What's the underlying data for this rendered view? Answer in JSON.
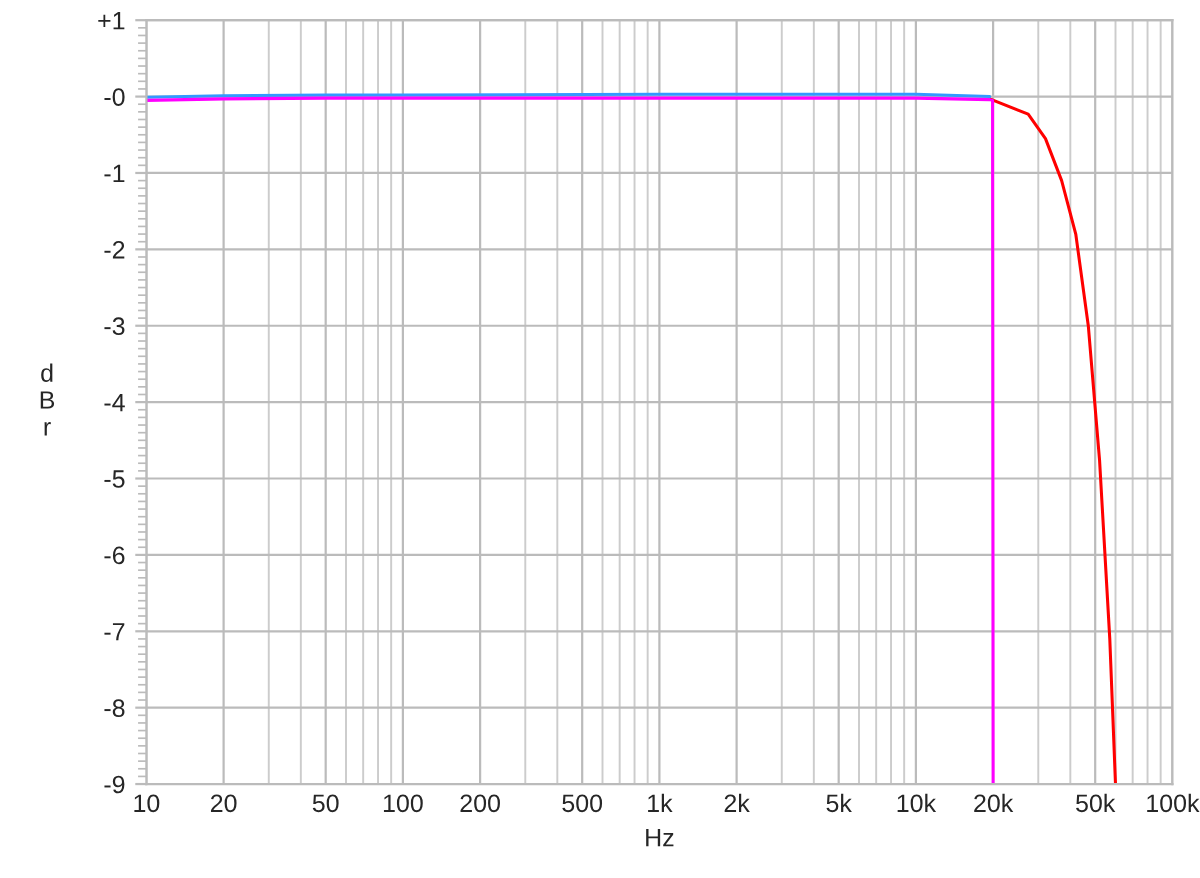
{
  "chart_data": {
    "type": "line",
    "xlabel": "Hz",
    "ylabel": "dBr",
    "log": "x",
    "grid": true,
    "marker": "none",
    "line_style": "solid",
    "xlim": [
      10,
      100000
    ],
    "ylim": [
      -9,
      1
    ],
    "xticks": [
      10,
      20,
      50,
      100,
      200,
      500,
      {
        "value": 1000,
        "label": "1k"
      },
      {
        "value": 2000,
        "label": "2k"
      },
      {
        "value": 5000,
        "label": "5k"
      },
      {
        "value": 10000,
        "label": "10k"
      },
      {
        "value": 20000,
        "label": "20k"
      },
      {
        "value": 50000,
        "label": "50k"
      },
      {
        "value": 100000,
        "label": "100k"
      }
    ],
    "yticks": [
      {
        "value": 1,
        "label": "+1"
      },
      {
        "value": 0,
        "label": "-0"
      },
      -1,
      -2,
      -3,
      -4,
      -5,
      -6,
      -7,
      -8,
      -9
    ],
    "series": [
      {
        "color": "#ff0000",
        "x": [
          19400,
          27400,
          32000,
          37000,
          42000,
          47000,
          52000,
          57000,
          60000
        ],
        "values": [
          -0.03,
          -0.23,
          -0.55,
          -1.1,
          -1.8,
          -3.0,
          -4.76,
          -7.1,
          -9
        ]
      },
      {
        "color": "#3399ff",
        "x": [
          10,
          20,
          50,
          100,
          1000,
          10000,
          19400
        ],
        "values": [
          -0.01,
          0.01,
          0.02,
          0.02,
          0.03,
          0.03,
          0.0
        ]
      },
      {
        "color": "#ff00ff",
        "x": [
          10,
          20,
          50,
          100,
          1000,
          10000,
          19400,
          19900,
          20000
        ],
        "values": [
          -0.05,
          -0.03,
          -0.02,
          -0.02,
          -0.02,
          -0.02,
          -0.04,
          -0.05,
          -9
        ]
      }
    ]
  }
}
